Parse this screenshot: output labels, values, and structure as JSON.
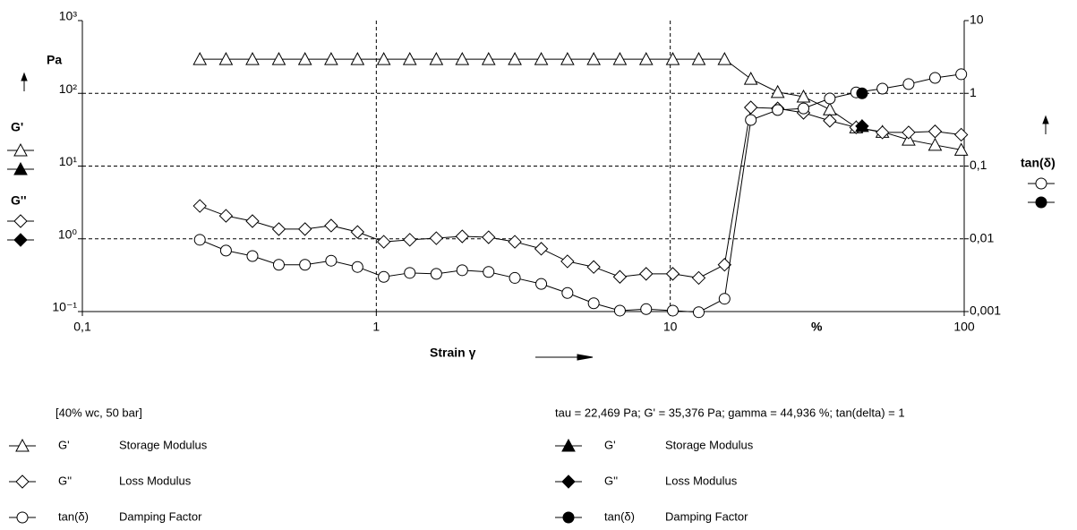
{
  "chart_data": {
    "type": "line",
    "ylabel": "Pa",
    "y2label": "tan(δ)",
    "xlabel": "Strain γ",
    "xunit": "%",
    "annotations": [
      "[40% wc, 50 bar]",
      "tau = 22,469 Pa; G' = 35,376 Pa; gamma = 44,936 %; tan(delta) = 1"
    ],
    "xscale": "log",
    "yscale": "log",
    "y2scale": "log",
    "grid": true,
    "xlim": [
      0.1,
      100
    ],
    "ylim": [
      0.1,
      1000
    ],
    "y2lim": [
      0.001,
      10
    ],
    "xticks": [
      {
        "value": 0.1,
        "label": "0,1"
      },
      1,
      10,
      100
    ],
    "yticks": [
      {
        "value": 0.1,
        "label": "10⁻¹"
      },
      {
        "value": 1,
        "label": "10⁰"
      },
      {
        "value": 10,
        "label": "10¹"
      },
      {
        "value": 100,
        "label": "10²"
      },
      {
        "value": 1000,
        "label": "10³"
      }
    ],
    "y2ticks": [
      {
        "value": 0.001,
        "label": "0,001"
      },
      {
        "value": 0.01,
        "label": "0,01"
      },
      {
        "value": 0.1,
        "label": "0,1"
      },
      1,
      10
    ],
    "x": [
      0.251,
      0.308,
      0.379,
      0.466,
      0.572,
      0.702,
      0.863,
      1.06,
      1.3,
      1.6,
      1.96,
      2.41,
      2.96,
      3.64,
      4.47,
      5.49,
      6.74,
      8.28,
      10.2,
      12.5,
      15.3,
      18.8,
      23.2,
      28.4,
      34.9,
      42.9,
      52.7,
      64.7,
      79.6,
      97.7
    ],
    "series": [
      {
        "name": "G'",
        "description": "Storage Modulus",
        "color": "#000000",
        "marker": "triangle",
        "filled": false,
        "values": [
          295,
          295,
          295,
          295,
          295,
          295,
          295,
          295,
          295,
          295,
          295,
          295,
          295,
          295,
          295,
          295,
          295,
          295,
          295,
          295,
          295,
          158,
          104,
          90,
          60,
          34,
          29.5,
          23,
          19.5,
          16.7
        ]
      },
      {
        "name": "G''",
        "description": "Loss Modulus",
        "color": "#000000",
        "marker": "diamond",
        "filled": false,
        "values": [
          2.83,
          2.07,
          1.75,
          1.36,
          1.36,
          1.52,
          1.24,
          0.91,
          0.97,
          1.02,
          1.08,
          1.05,
          0.91,
          0.73,
          0.49,
          0.41,
          0.3,
          0.33,
          0.33,
          0.29,
          0.44,
          64,
          62,
          54,
          42,
          34,
          29,
          29,
          30,
          27
        ]
      },
      {
        "name": "tan(δ)",
        "description": "Damping Factor",
        "color": "#000000",
        "marker": "circle",
        "filled": false,
        "axis": "y2",
        "values": [
          0.0097,
          0.0069,
          0.0058,
          0.0044,
          0.0044,
          0.005,
          0.0041,
          0.003,
          0.0034,
          0.0033,
          0.0037,
          0.0035,
          0.0029,
          0.0024,
          0.0018,
          0.0013,
          0.00103,
          0.00108,
          0.00103,
          0.00098,
          0.0015,
          0.43,
          0.59,
          0.62,
          0.85,
          1.03,
          1.16,
          1.34,
          1.63,
          1.83
        ]
      },
      {
        "name": "G'",
        "description": "Storage Modulus",
        "color": "#000000",
        "marker": "triangle",
        "filled": true,
        "x": [
          44.936
        ],
        "values": [
          35.376
        ]
      },
      {
        "name": "G''",
        "description": "Loss Modulus",
        "color": "#000000",
        "marker": "diamond",
        "filled": true,
        "x": [
          44.936
        ],
        "values": [
          35.376
        ]
      },
      {
        "name": "tan(δ)",
        "description": "Damping Factor",
        "color": "#000000",
        "marker": "circle",
        "filled": true,
        "axis": "y2",
        "x": [
          44.936
        ],
        "values": [
          1
        ]
      }
    ]
  }
}
